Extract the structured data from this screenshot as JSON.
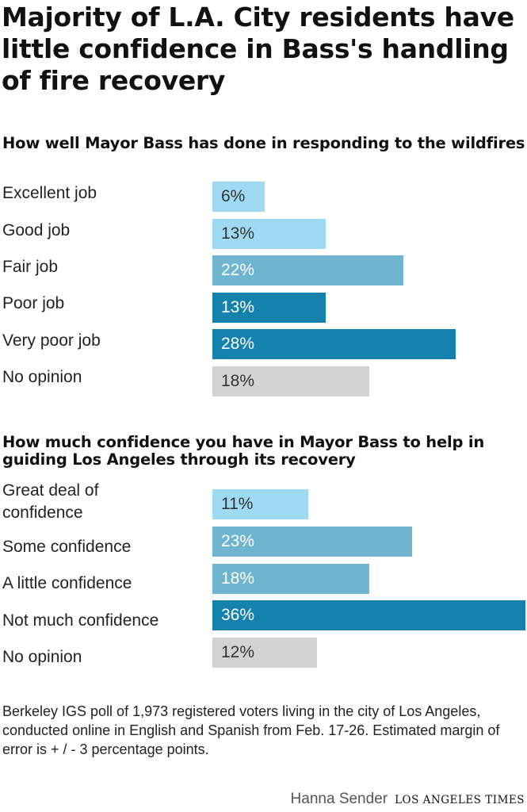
{
  "title": "Majority of L.A. City residents have little confidence in Bass's handling of fire recovery",
  "note": "Berkeley IGS poll of 1,973 registered voters living in the city of Los Angeles, conducted online in English and Spanish from Feb. 17-26. Estimated margin of error is + / - 3 percentage points.",
  "credit": {
    "author": "Hanna Sender",
    "organization": "LOS ANGELES TIMES"
  },
  "colors": {
    "light": "#9edbf3",
    "medium": "#6fb5d0",
    "dark": "#1582ad",
    "neutral": "#d3d3d3"
  },
  "chart_data": [
    {
      "type": "bar",
      "orientation": "horizontal",
      "title": "How well Mayor Bass has done in responding to the wildfires",
      "categories": [
        "Excellent job",
        "Good job",
        "Fair job",
        "Poor job",
        "Very poor job",
        "No opinion"
      ],
      "values": [
        6,
        13,
        22,
        13,
        28,
        18
      ],
      "value_labels": [
        "6%",
        "13%",
        "22%",
        "13%",
        "28%",
        "18%"
      ],
      "colors": [
        "#9edbf3",
        "#9edbf3",
        "#6fb5d0",
        "#1582ad",
        "#1582ad",
        "#d3d3d3"
      ],
      "text_colors": [
        "#333333",
        "#333333",
        "#ffffff",
        "#ffffff",
        "#ffffff",
        "#333333"
      ],
      "unit": "%",
      "xlim": [
        0,
        36
      ]
    },
    {
      "type": "bar",
      "orientation": "horizontal",
      "title": "How much confidence you have in Mayor Bass to help in guiding Los Angeles through its recovery",
      "categories": [
        "Great deal of confidence",
        "Some confidence",
        "A little confidence",
        "Not much confidence",
        "No opinion"
      ],
      "values": [
        11,
        23,
        18,
        36,
        12
      ],
      "value_labels": [
        "11%",
        "23%",
        "18%",
        "36%",
        "12%"
      ],
      "colors": [
        "#9edbf3",
        "#6fb5d0",
        "#6fb5d0",
        "#1582ad",
        "#d3d3d3"
      ],
      "text_colors": [
        "#333333",
        "#ffffff",
        "#ffffff",
        "#ffffff",
        "#333333"
      ],
      "unit": "%",
      "xlim": [
        0,
        36
      ]
    }
  ]
}
